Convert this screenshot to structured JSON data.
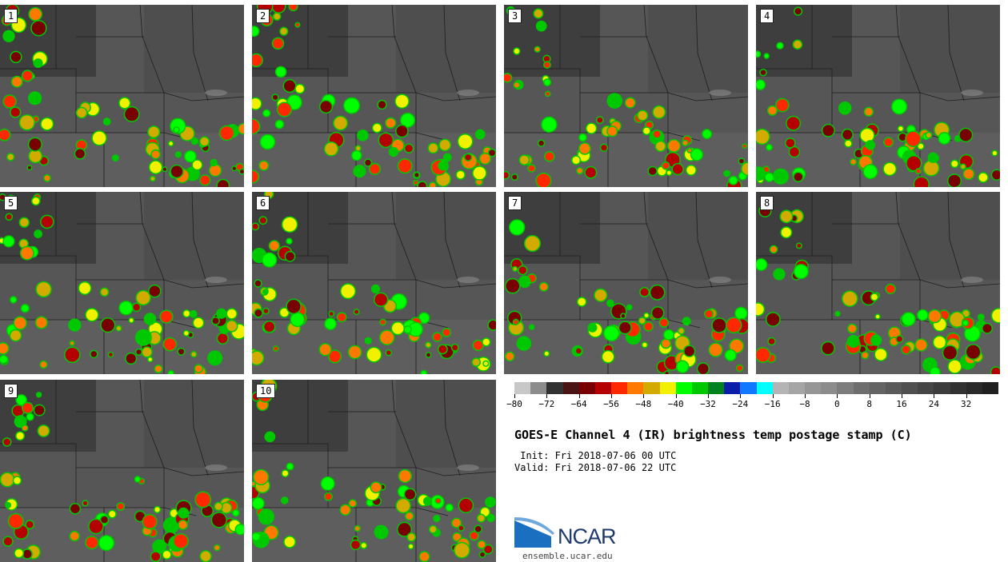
{
  "panels": [
    {
      "label": "1"
    },
    {
      "label": "2"
    },
    {
      "label": "3"
    },
    {
      "label": "4"
    },
    {
      "label": "5"
    },
    {
      "label": "6"
    },
    {
      "label": "7"
    },
    {
      "label": "8"
    },
    {
      "label": "9"
    },
    {
      "label": "10"
    }
  ],
  "colorbar": {
    "colors": [
      "#c8c8c8",
      "#8c8c8c",
      "#323232",
      "#4b1414",
      "#780000",
      "#b40000",
      "#ff2800",
      "#ff7800",
      "#d2aa00",
      "#f0f000",
      "#00ff00",
      "#00c800",
      "#00821e",
      "#0a1eaa",
      "#0f78ff",
      "#00ffff",
      "#b4b4b4",
      "#a5a5a5",
      "#969696",
      "#8c8c8c",
      "#7d7d7d",
      "#6e6e6e",
      "#646464",
      "#5a5a5a",
      "#505050",
      "#464646",
      "#3c3c3c",
      "#323232",
      "#2a2a2a",
      "#202020"
    ],
    "tick_labels": [
      "−80",
      "−72",
      "−64",
      "−56",
      "−48",
      "−40",
      "−32",
      "−24",
      "−16",
      "−8",
      "0",
      "8",
      "16",
      "24",
      "32"
    ]
  },
  "title": "GOES-E Channel 4 (IR) brightness temp postage stamp (C)",
  "init_line": " Init: Fri 2018-07-06 00 UTC",
  "valid_line": "Valid: Fri 2018-07-06 22 UTC",
  "logo": {
    "name": "NCAR",
    "url": "ensemble.ucar.edu"
  }
}
